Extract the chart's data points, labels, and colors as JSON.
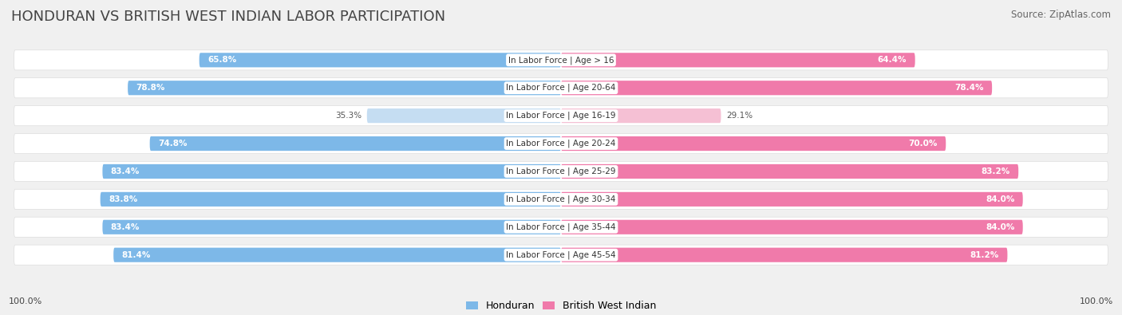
{
  "title": "HONDURAN VS BRITISH WEST INDIAN LABOR PARTICIPATION",
  "source": "Source: ZipAtlas.com",
  "categories": [
    "In Labor Force | Age > 16",
    "In Labor Force | Age 20-64",
    "In Labor Force | Age 16-19",
    "In Labor Force | Age 20-24",
    "In Labor Force | Age 25-29",
    "In Labor Force | Age 30-34",
    "In Labor Force | Age 35-44",
    "In Labor Force | Age 45-54"
  ],
  "honduran": [
    65.8,
    78.8,
    35.3,
    74.8,
    83.4,
    83.8,
    83.4,
    81.4
  ],
  "bwi": [
    64.4,
    78.4,
    29.1,
    70.0,
    83.2,
    84.0,
    84.0,
    81.2
  ],
  "honduran_color": "#7db8e8",
  "honduran_light_color": "#c5ddf2",
  "bwi_color": "#f07aaa",
  "bwi_light_color": "#f5c0d4",
  "background_color": "#f0f0f0",
  "row_bg_color": "#ffffff",
  "max_value": 100.0,
  "legend_honduran": "Honduran",
  "legend_bwi": "British West Indian",
  "bottom_left": "100.0%",
  "bottom_right": "100.0%",
  "title_fontsize": 13,
  "source_fontsize": 8.5,
  "label_fontsize": 7.5,
  "cat_fontsize": 7.5
}
